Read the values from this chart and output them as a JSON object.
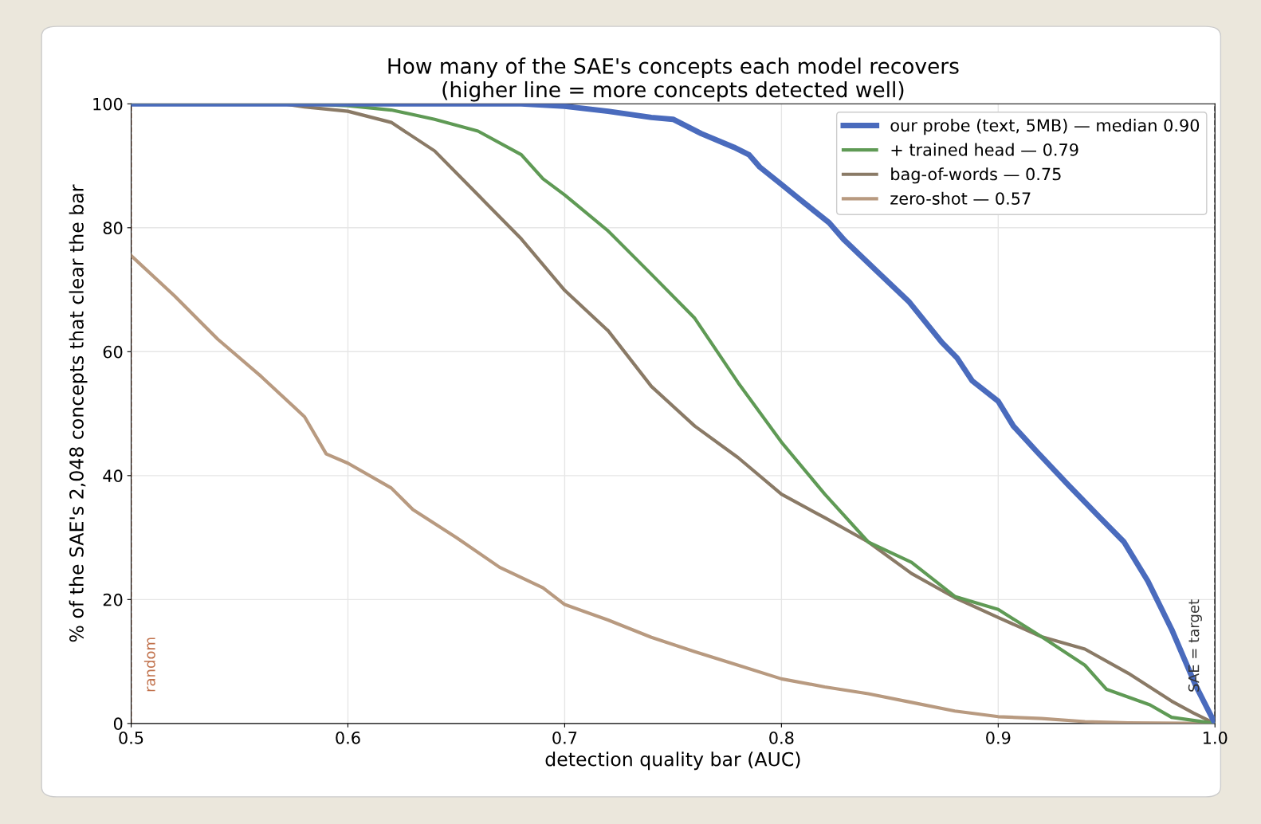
{
  "chart_data": {
    "type": "line",
    "title": "How many of the SAE's concepts each model recovers\n(higher line = more concepts detected well)",
    "xlabel": "detection quality bar (AUC)",
    "ylabel": "% of the SAE's 2,048 concepts that clear the bar",
    "xlim": [
      0.5,
      1.0
    ],
    "ylim": [
      0,
      100
    ],
    "xticks": [
      0.5,
      0.6,
      0.7,
      0.8,
      0.9,
      {
        "value": 1.0,
        "label": "1.0"
      }
    ],
    "yticks": [
      0,
      20,
      40,
      60,
      80,
      100
    ],
    "grid": true,
    "legend": "top right",
    "line_style": "solid",
    "marker": "none",
    "series": [
      {
        "name": "our probe (text, 5MB) — median 0.90",
        "color": "#4a6bbd",
        "x": [
          0.5,
          0.6,
          0.68,
          0.7,
          0.72,
          0.74,
          0.75,
          0.763,
          0.778,
          0.785,
          0.79,
          0.8,
          0.807,
          0.822,
          0.829,
          0.844,
          0.859,
          0.874,
          0.881,
          0.888,
          0.9,
          0.907,
          0.918,
          0.932,
          0.947,
          0.958,
          0.969,
          0.98,
          0.991,
          1.0
        ],
        "values": [
          100,
          100,
          100,
          99.6,
          98.8,
          97.8,
          97.5,
          95.2,
          93,
          91.8,
          89.8,
          87,
          85,
          80.8,
          78,
          73,
          68,
          61.5,
          59,
          55.3,
          52,
          48,
          43.8,
          38.6,
          33.2,
          29.3,
          23,
          15.2,
          6.2,
          0
        ]
      },
      {
        "name": "+ trained head — 0.79",
        "color": "#5f9a55",
        "x": [
          0.5,
          0.58,
          0.6,
          0.62,
          0.64,
          0.66,
          0.68,
          0.69,
          0.7,
          0.72,
          0.74,
          0.76,
          0.78,
          0.8,
          0.82,
          0.84,
          0.86,
          0.88,
          0.9,
          0.92,
          0.94,
          0.95,
          0.97,
          0.98,
          1.0
        ],
        "values": [
          100,
          100,
          99.7,
          99,
          97.5,
          95.6,
          91.8,
          87.9,
          85.3,
          79.5,
          72.5,
          65.4,
          55,
          45.4,
          37,
          29.3,
          26,
          20.5,
          18.4,
          14,
          9.4,
          5.5,
          3,
          1,
          0
        ]
      },
      {
        "name": "bag-of-words — 0.75",
        "color": "#8a7a66",
        "x": [
          0.5,
          0.57,
          0.58,
          0.6,
          0.62,
          0.64,
          0.66,
          0.68,
          0.7,
          0.72,
          0.74,
          0.76,
          0.78,
          0.8,
          0.82,
          0.84,
          0.86,
          0.88,
          0.9,
          0.92,
          0.94,
          0.96,
          0.98,
          0.99,
          1.0
        ],
        "values": [
          100,
          100,
          99.5,
          98.8,
          97,
          92.4,
          85.3,
          78.2,
          69.9,
          63.4,
          54.4,
          48,
          42.9,
          37,
          33.2,
          29.3,
          24.2,
          20.3,
          17.1,
          14,
          12,
          8.1,
          3.6,
          1.7,
          0
        ]
      },
      {
        "name": "zero-shot — 0.57",
        "color": "#b89a80",
        "x": [
          0.5,
          0.52,
          0.54,
          0.56,
          0.58,
          0.59,
          0.6,
          0.62,
          0.63,
          0.65,
          0.67,
          0.69,
          0.7,
          0.72,
          0.74,
          0.76,
          0.78,
          0.8,
          0.82,
          0.84,
          0.86,
          0.88,
          0.9,
          0.92,
          0.94,
          0.96,
          1.0
        ],
        "values": [
          75.5,
          69,
          62,
          56,
          49.5,
          43.5,
          42,
          38,
          34.5,
          30,
          25.2,
          21.9,
          19.2,
          16.7,
          13.9,
          11.6,
          9.4,
          7.2,
          5.9,
          4.8,
          3.4,
          2,
          1.1,
          0.8,
          0.3,
          0.1,
          0
        ]
      }
    ],
    "ref_lines": [
      {
        "axis": "x",
        "value": 0.5,
        "label": "random",
        "color": "#c0704a",
        "line_style": "dashed"
      },
      {
        "axis": "x",
        "value": 1.0,
        "label": "SAE = target",
        "color": "#333333",
        "line_style": "dashed"
      }
    ]
  }
}
